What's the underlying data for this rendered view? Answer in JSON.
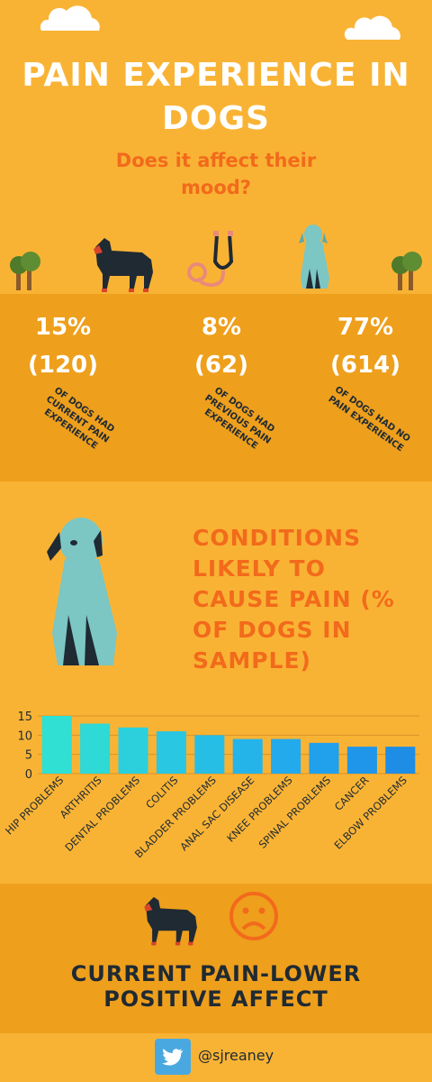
{
  "header": {
    "title_line1": "PAIN EXPERIENCE IN",
    "title_line2": "DOGS",
    "subtitle_line1": "Does it affect their",
    "subtitle_line2": "mood?"
  },
  "stats": [
    {
      "pct": "15%",
      "count": "(120)",
      "caption_lines": [
        "OF DOGS HAD",
        "CURRENT PAIN",
        "EXPERIENCE"
      ]
    },
    {
      "pct": "8%",
      "count": "(62)",
      "caption_lines": [
        "OF DOGS HAD",
        "PREVIOUS PAIN",
        "EXPERIENCE"
      ]
    },
    {
      "pct": "77%",
      "count": "(614)",
      "caption_lines": [
        "OF DOGS HAD NO",
        "PAIN EXPERIENCE"
      ]
    }
  ],
  "conditions": {
    "title_lines": [
      "CONDITIONS",
      "LIKELY TO",
      "CAUSE PAIN (%",
      "OF DOGS IN",
      "SAMPLE)"
    ]
  },
  "chart_data": {
    "type": "bar",
    "categories": [
      "HIP PROBLEMS",
      "ARTHRITIS",
      "DENTAL PROBLEMS",
      "COLITIS",
      "BLADDER PROBLEMS",
      "ANAL SAC DISEASE",
      "KNEE PROBLEMS",
      "SPINAL PROBLEMS",
      "CANCER",
      "ELBOW PROBLEMS"
    ],
    "values": [
      15,
      13,
      12,
      11,
      10,
      9,
      9,
      8,
      7,
      7
    ],
    "yticks": [
      0,
      5,
      10,
      15
    ],
    "ylim": [
      0,
      15
    ],
    "grid": true,
    "colors": [
      "#2FE0D3",
      "#2ED9D6",
      "#2BD0DC",
      "#29C7E2",
      "#27BEE6",
      "#25B4EA",
      "#23AAEC",
      "#21A0EC",
      "#1F96EA",
      "#1E8DE6"
    ]
  },
  "conclusion": {
    "line1": "CURRENT PAIN-LOWER",
    "line2": "POSITIVE AFFECT"
  },
  "footer": {
    "handle": "@sjreaney"
  },
  "colors": {
    "background": "#F9B334",
    "band": "#EE9F1C",
    "accent_orange": "#F26A1B",
    "dark": "#1f2a33",
    "teal_dog": "#7CC6C4",
    "twitter": "#4AA8E0"
  },
  "icons": [
    "cloud-icon",
    "tree-icon",
    "rottweiler-icon",
    "stethoscope-icon",
    "sitting-dog-icon",
    "sad-face-icon",
    "twitter-icon"
  ]
}
